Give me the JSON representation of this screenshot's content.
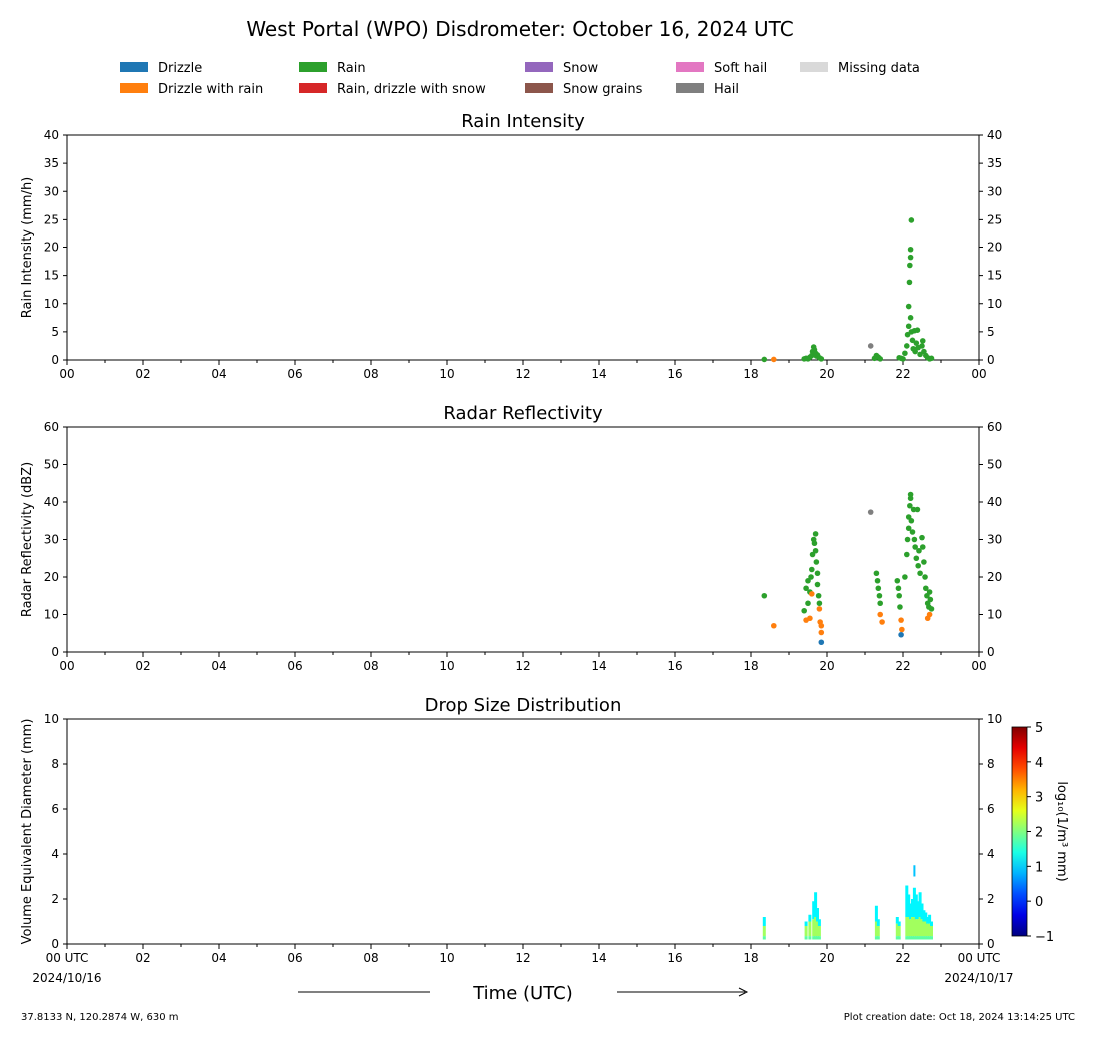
{
  "title": "West Portal (WPO) Disdrometer: October 16, 2024 UTC",
  "legend": [
    {
      "label": "Drizzle",
      "color": "#1f77b4"
    },
    {
      "label": "Drizzle with rain",
      "color": "#ff7f0e"
    },
    {
      "label": "Rain",
      "color": "#2ca02c"
    },
    {
      "label": "Rain, drizzle with snow",
      "color": "#d62728"
    },
    {
      "label": "Snow",
      "color": "#9467bd"
    },
    {
      "label": "Snow grains",
      "color": "#8c564b"
    },
    {
      "label": "Soft hail",
      "color": "#e377c2"
    },
    {
      "label": "Hail",
      "color": "#7f7f7f"
    },
    {
      "label": "Missing data",
      "color": "#d9d9d9"
    }
  ],
  "x_ticks": [
    "00",
    "02",
    "04",
    "06",
    "08",
    "10",
    "12",
    "14",
    "16",
    "18",
    "20",
    "22",
    "00"
  ],
  "x_ticks_bottom": [
    "00 UTC",
    "02",
    "04",
    "06",
    "08",
    "10",
    "12",
    "14",
    "16",
    "18",
    "20",
    "22",
    "00 UTC"
  ],
  "start_date": "2024/10/16",
  "end_date": "2024/10/17",
  "xlabel": "Time (UTC)",
  "footer_left": "37.8133 N, 120.2874 W, 630 m",
  "footer_right": "Plot creation date: Oct 18, 2024 13:14:25 UTC",
  "colorbar": {
    "ticks": [
      "5",
      "4",
      "3",
      "2",
      "1",
      "0",
      "−1"
    ],
    "label": "log₁₀(1/m³ mm)",
    "range": [
      -1,
      5
    ]
  },
  "chart_data": [
    {
      "type": "scatter",
      "title": "Rain Intensity",
      "ylabel": "Rain Intensity (mm/h)",
      "xlim": [
        0,
        24
      ],
      "ylim": [
        0,
        40
      ],
      "y_ticks": [
        "0",
        "5",
        "10",
        "15",
        "20",
        "25",
        "30",
        "35",
        "40"
      ],
      "series": [
        {
          "class": "Drizzle with rain",
          "color": "#ff7f0e",
          "points": [
            [
              18.6,
              0.1
            ]
          ]
        },
        {
          "class": "Hail",
          "color": "#7f7f7f",
          "points": [
            [
              21.15,
              2.5
            ]
          ]
        },
        {
          "class": "Rain",
          "color": "#2ca02c",
          "points": [
            [
              18.35,
              0.1
            ],
            [
              19.4,
              0.2
            ],
            [
              19.45,
              0.3
            ],
            [
              19.5,
              0.2
            ],
            [
              19.55,
              0.5
            ],
            [
              19.6,
              0.8
            ],
            [
              19.62,
              1.5
            ],
            [
              19.65,
              2.3
            ],
            [
              19.67,
              1.8
            ],
            [
              19.7,
              1.2
            ],
            [
              19.72,
              0.7
            ],
            [
              19.75,
              0.9
            ],
            [
              19.8,
              0.4
            ],
            [
              19.85,
              0.2
            ],
            [
              21.25,
              0.3
            ],
            [
              21.3,
              0.8
            ],
            [
              21.35,
              0.5
            ],
            [
              21.4,
              0.2
            ],
            [
              21.9,
              0.4
            ],
            [
              21.95,
              0.3
            ],
            [
              22.0,
              0.2
            ],
            [
              22.05,
              1.2
            ],
            [
              22.1,
              2.5
            ],
            [
              22.12,
              4.5
            ],
            [
              22.15,
              6.0
            ],
            [
              22.15,
              9.5
            ],
            [
              22.17,
              13.8
            ],
            [
              22.18,
              16.8
            ],
            [
              22.2,
              18.2
            ],
            [
              22.2,
              19.6
            ],
            [
              22.22,
              24.9
            ],
            [
              22.2,
              7.5
            ],
            [
              22.22,
              5.0
            ],
            [
              22.25,
              3.5
            ],
            [
              22.27,
              2.0
            ],
            [
              22.3,
              5.2
            ],
            [
              22.32,
              1.5
            ],
            [
              22.35,
              3.0
            ],
            [
              22.38,
              5.3
            ],
            [
              22.4,
              2.2
            ],
            [
              22.45,
              1.0
            ],
            [
              22.5,
              2.5
            ],
            [
              22.52,
              3.4
            ],
            [
              22.55,
              1.5
            ],
            [
              22.6,
              0.8
            ],
            [
              22.65,
              0.4
            ],
            [
              22.7,
              0.2
            ],
            [
              22.75,
              0.3
            ]
          ]
        }
      ]
    },
    {
      "type": "scatter",
      "title": "Radar Reflectivity",
      "ylabel": "Radar Reflectivity (dBZ)",
      "xlim": [
        0,
        24
      ],
      "ylim": [
        0,
        60
      ],
      "y_ticks": [
        "0",
        "10",
        "20",
        "30",
        "40",
        "50",
        "60"
      ],
      "series": [
        {
          "class": "Rain",
          "color": "#2ca02c",
          "points": [
            [
              18.35,
              15
            ],
            [
              19.4,
              11
            ],
            [
              19.45,
              17
            ],
            [
              19.5,
              13
            ],
            [
              19.5,
              19
            ],
            [
              19.55,
              16
            ],
            [
              19.58,
              20
            ],
            [
              19.6,
              22
            ],
            [
              19.62,
              26
            ],
            [
              19.65,
              30
            ],
            [
              19.67,
              29
            ],
            [
              19.7,
              31.5
            ],
            [
              19.7,
              27
            ],
            [
              19.72,
              24
            ],
            [
              19.75,
              21
            ],
            [
              19.75,
              18
            ],
            [
              19.78,
              15
            ],
            [
              19.8,
              13
            ],
            [
              21.3,
              21
            ],
            [
              21.33,
              19
            ],
            [
              21.35,
              17
            ],
            [
              21.38,
              15
            ],
            [
              21.4,
              13
            ],
            [
              21.85,
              19
            ],
            [
              21.88,
              17
            ],
            [
              21.9,
              15
            ],
            [
              21.92,
              12
            ],
            [
              22.05,
              20
            ],
            [
              22.1,
              26
            ],
            [
              22.12,
              30
            ],
            [
              22.15,
              33
            ],
            [
              22.15,
              36
            ],
            [
              22.18,
              39
            ],
            [
              22.2,
              42
            ],
            [
              22.2,
              41
            ],
            [
              22.22,
              35
            ],
            [
              22.25,
              32
            ],
            [
              22.28,
              38
            ],
            [
              22.3,
              30
            ],
            [
              22.32,
              28
            ],
            [
              22.35,
              25
            ],
            [
              22.38,
              38
            ],
            [
              22.4,
              23
            ],
            [
              22.42,
              27
            ],
            [
              22.45,
              21
            ],
            [
              22.5,
              30.5
            ],
            [
              22.52,
              28
            ],
            [
              22.55,
              24
            ],
            [
              22.58,
              20
            ],
            [
              22.6,
              17
            ],
            [
              22.63,
              15
            ],
            [
              22.65,
              13
            ],
            [
              22.68,
              12
            ],
            [
              22.7,
              16
            ],
            [
              22.72,
              14
            ],
            [
              22.75,
              11.5
            ]
          ]
        },
        {
          "class": "Drizzle with rain",
          "color": "#ff7f0e",
          "points": [
            [
              18.6,
              7
            ],
            [
              19.45,
              8.5
            ],
            [
              19.55,
              9
            ],
            [
              19.6,
              15.5
            ],
            [
              19.8,
              11.5
            ],
            [
              19.82,
              8
            ],
            [
              19.85,
              7
            ],
            [
              19.85,
              5.2
            ],
            [
              21.4,
              10
            ],
            [
              21.45,
              8
            ],
            [
              21.95,
              8.5
            ],
            [
              21.97,
              6
            ],
            [
              22.65,
              9
            ],
            [
              22.7,
              10
            ]
          ]
        },
        {
          "class": "Drizzle",
          "color": "#1f77b4",
          "points": [
            [
              19.85,
              2.6
            ],
            [
              21.95,
              4.6
            ]
          ]
        },
        {
          "class": "Hail",
          "color": "#7f7f7f",
          "points": [
            [
              21.15,
              37.3
            ]
          ]
        }
      ]
    },
    {
      "type": "heatmap",
      "title": "Drop Size Distribution",
      "ylabel": "Volume Equivalent Diameter (mm)",
      "xlim": [
        0,
        24
      ],
      "ylim": [
        0,
        10
      ],
      "y_ticks": [
        "0",
        "2",
        "4",
        "6",
        "8",
        "10"
      ],
      "value_range": [
        -1,
        5
      ],
      "columns": [
        {
          "x": 18.35,
          "top": 1.2,
          "core": 0.8
        },
        {
          "x": 19.45,
          "top": 1.0,
          "core": 0.8
        },
        {
          "x": 19.55,
          "top": 1.3,
          "core": 1.0
        },
        {
          "x": 19.65,
          "top": 1.9,
          "core": 1.1
        },
        {
          "x": 19.7,
          "top": 2.3,
          "core": 1.2
        },
        {
          "x": 19.75,
          "top": 1.6,
          "core": 1.0
        },
        {
          "x": 19.8,
          "top": 1.1,
          "core": 0.8
        },
        {
          "x": 21.3,
          "top": 1.7,
          "core": 1.0
        },
        {
          "x": 21.35,
          "top": 1.1,
          "core": 0.8
        },
        {
          "x": 21.85,
          "top": 1.2,
          "core": 0.9
        },
        {
          "x": 21.9,
          "top": 1.0,
          "core": 0.8
        },
        {
          "x": 22.1,
          "top": 2.6,
          "core": 1.2
        },
        {
          "x": 22.15,
          "top": 2.2,
          "core": 1.2
        },
        {
          "x": 22.2,
          "top": 1.8,
          "core": 1.1
        },
        {
          "x": 22.25,
          "top": 2.0,
          "core": 1.2
        },
        {
          "x": 22.3,
          "top": 2.5,
          "core": 1.2
        },
        {
          "x": 22.35,
          "top": 2.2,
          "core": 1.1
        },
        {
          "x": 22.4,
          "top": 1.9,
          "core": 1.1
        },
        {
          "x": 22.45,
          "top": 2.3,
          "core": 1.2
        },
        {
          "x": 22.5,
          "top": 1.8,
          "core": 1.1
        },
        {
          "x": 22.55,
          "top": 1.5,
          "core": 1.0
        },
        {
          "x": 22.6,
          "top": 1.4,
          "core": 1.0
        },
        {
          "x": 22.65,
          "top": 1.2,
          "core": 0.9
        },
        {
          "x": 22.7,
          "top": 1.3,
          "core": 0.9
        },
        {
          "x": 22.75,
          "top": 1.0,
          "core": 0.8
        }
      ],
      "isolated": [
        {
          "x": 22.3,
          "y_low": 3.0,
          "y_high": 3.5
        }
      ]
    }
  ]
}
